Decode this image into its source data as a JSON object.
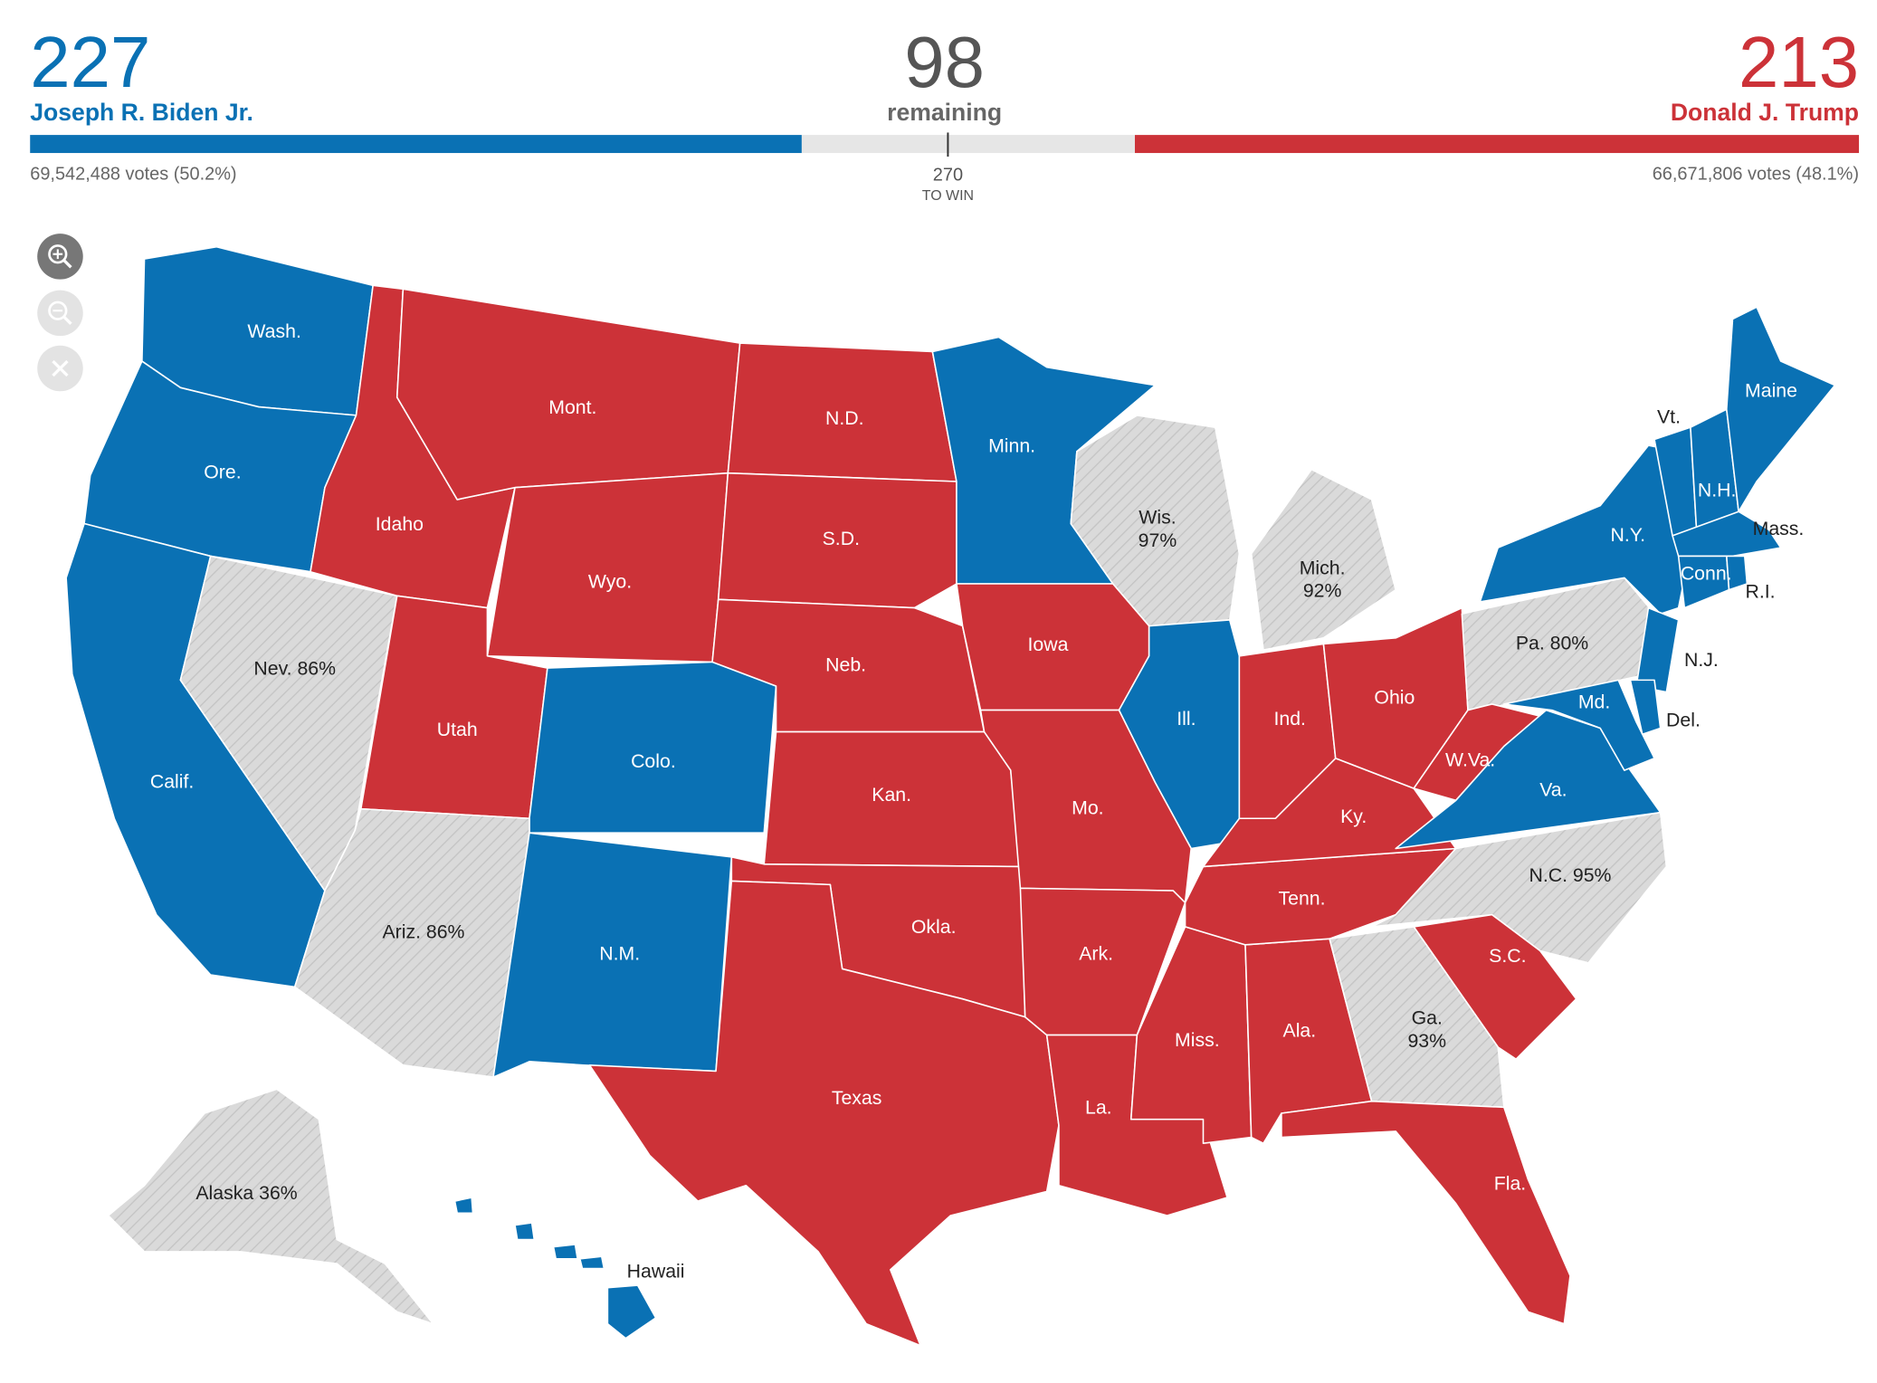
{
  "header": {
    "biden": {
      "electoral_votes": 227,
      "name": "Joseph R. Biden Jr.",
      "popular_vote": "69,542,488 votes (50.2%)",
      "color": "#0a71b4"
    },
    "remaining": {
      "electoral_votes": 98,
      "label": "remaining",
      "color": "#e6e6e6"
    },
    "trump": {
      "electoral_votes": 213,
      "name": "Donald J. Trump",
      "popular_vote": "66,671,806 votes (48.1%)",
      "color": "#cc3238"
    },
    "threshold": {
      "value": 270,
      "label": "TO WIN"
    }
  },
  "states": [
    {
      "label": [
        "Wash."
      ],
      "color": "#0a71b4"
    },
    {
      "label": [
        "Ore."
      ],
      "color": "#0a71b4"
    },
    {
      "label": [
        "Calif."
      ],
      "color": "#0a71b4"
    },
    {
      "label": [
        "Nev. 86%"
      ],
      "color": "#d9d9d9",
      "hatched": true
    },
    {
      "label": [
        "Idaho"
      ],
      "color": "#cc3238"
    },
    {
      "label": [
        "Mont."
      ],
      "color": "#cc3238"
    },
    {
      "label": [
        "Wyo."
      ],
      "color": "#cc3238"
    },
    {
      "label": [
        "Utah"
      ],
      "color": "#cc3238"
    },
    {
      "label": [
        "Colo."
      ],
      "color": "#0a71b4"
    },
    {
      "label": [
        "Ariz. 86%"
      ],
      "color": "#d9d9d9",
      "hatched": true
    },
    {
      "label": [
        "N.M."
      ],
      "color": "#0a71b4"
    },
    {
      "label": [
        "N.D."
      ],
      "color": "#cc3238"
    },
    {
      "label": [
        "S.D."
      ],
      "color": "#cc3238"
    },
    {
      "label": [
        "Neb."
      ],
      "color": "#cc3238"
    },
    {
      "label": [
        "Kan."
      ],
      "color": "#cc3238"
    },
    {
      "label": [
        "Okla."
      ],
      "color": "#cc3238"
    },
    {
      "label": [
        "Texas"
      ],
      "color": "#cc3238"
    },
    {
      "label": [
        "Minn."
      ],
      "color": "#0a71b4"
    },
    {
      "label": [
        "Iowa"
      ],
      "color": "#cc3238"
    },
    {
      "label": [
        "Wis.",
        "97%"
      ],
      "color": "#d9d9d9",
      "hatched": true
    },
    {
      "label": [
        "Ill."
      ],
      "color": "#0a71b4"
    },
    {
      "label": [
        "Mo."
      ],
      "color": "#cc3238"
    },
    {
      "label": [
        "Ark."
      ],
      "color": "#cc3238"
    },
    {
      "label": [
        "La."
      ],
      "color": "#cc3238"
    },
    {
      "label": [
        "Miss."
      ],
      "color": "#cc3238"
    },
    {
      "label": [
        "Ala."
      ],
      "color": "#cc3238"
    },
    {
      "label": [
        "Tenn."
      ],
      "color": "#cc3238"
    },
    {
      "label": [
        "Ky."
      ],
      "color": "#cc3238"
    },
    {
      "label": [
        "Ind."
      ],
      "color": "#cc3238"
    },
    {
      "label": [
        "Ohio"
      ],
      "color": "#cc3238"
    },
    {
      "label": [
        "Mich.",
        "92%"
      ],
      "color": "#d9d9d9",
      "hatched": true
    },
    {
      "label": [
        "Pa. 80%"
      ],
      "color": "#d9d9d9",
      "hatched": true
    },
    {
      "label": [
        "W.Va."
      ],
      "color": "#cc3238"
    },
    {
      "label": [
        "Va."
      ],
      "color": "#0a71b4"
    },
    {
      "label": [
        "N.C. 95%"
      ],
      "color": "#d9d9d9",
      "hatched": true
    },
    {
      "label": [
        "S.C."
      ],
      "color": "#cc3238"
    },
    {
      "label": [
        "Ga.",
        "93%"
      ],
      "color": "#d9d9d9",
      "hatched": true
    },
    {
      "label": [
        "Fla."
      ],
      "color": "#cc3238"
    },
    {
      "label": [
        "N.Y."
      ],
      "color": "#0a71b4"
    },
    {
      "label": [
        "N.J."
      ],
      "color": "#0a71b4"
    },
    {
      "label": [
        "Md."
      ],
      "color": "#0a71b4"
    },
    {
      "label": [
        "Del."
      ],
      "color": "#0a71b4"
    },
    {
      "label": [
        "Vt."
      ],
      "color": "#0a71b4"
    },
    {
      "label": [
        "N.H."
      ],
      "color": "#0a71b4"
    },
    {
      "label": [
        "Maine"
      ],
      "color": "#0a71b4"
    },
    {
      "label": [
        "Mass."
      ],
      "color": "#0a71b4"
    },
    {
      "label": [
        "Conn."
      ],
      "color": "#0a71b4"
    },
    {
      "label": [
        "R.I."
      ],
      "color": "#0a71b4"
    },
    {
      "label": [
        "Alaska 36%"
      ],
      "color": "#d9d9d9",
      "hatched": true
    },
    {
      "label": [
        "Hawaii"
      ],
      "color": "#0a71b4"
    }
  ]
}
